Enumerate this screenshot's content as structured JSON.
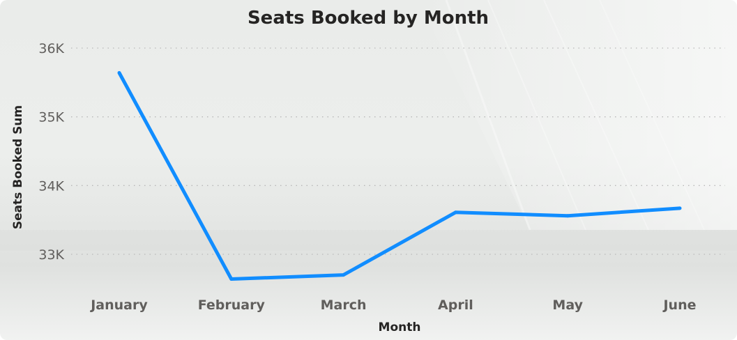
{
  "chart_data": {
    "type": "line",
    "title": "Seats Booked by Month",
    "xlabel": "Month",
    "ylabel": "Seats Booked Sum",
    "categories": [
      "January",
      "February",
      "March",
      "April",
      "May",
      "June"
    ],
    "series": [
      {
        "name": "",
        "values": [
          35640,
          32640,
          32700,
          33610,
          33560,
          33670
        ]
      }
    ],
    "ylim": [
      32400,
      36000
    ],
    "yticks": [
      {
        "value": 33000,
        "label": "33K"
      },
      {
        "value": 34000,
        "label": "34K"
      },
      {
        "value": 35000,
        "label": "35K"
      },
      {
        "value": 36000,
        "label": "36K"
      }
    ],
    "grid": true,
    "line_color": "#118dff"
  }
}
